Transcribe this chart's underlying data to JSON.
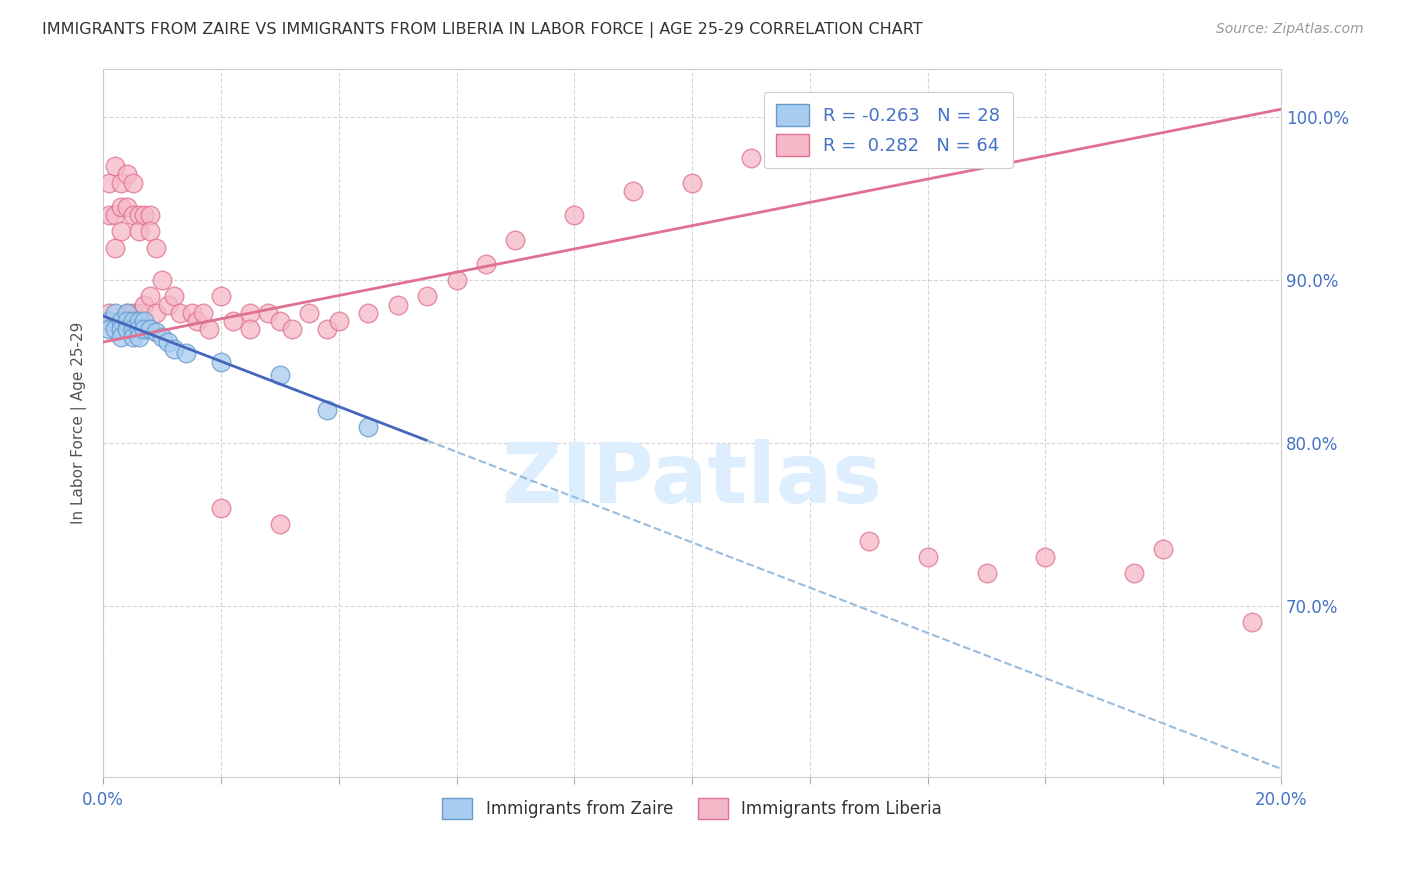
{
  "title": "IMMIGRANTS FROM ZAIRE VS IMMIGRANTS FROM LIBERIA IN LABOR FORCE | AGE 25-29 CORRELATION CHART",
  "source": "Source: ZipAtlas.com",
  "ylabel": "In Labor Force | Age 25-29",
  "xmin": 0.0,
  "xmax": 0.2,
  "ymin": 0.595,
  "ymax": 1.03,
  "legend_r_zaire": "-0.263",
  "legend_n_zaire": "28",
  "legend_r_liberia": "0.282",
  "legend_n_liberia": "64",
  "color_zaire_fill": "#A8CCF0",
  "color_zaire_edge": "#6699CC",
  "color_liberia_fill": "#F5B8C8",
  "color_liberia_edge": "#E07090",
  "color_zaire_line": "#4466BB",
  "color_liberia_line": "#E07090",
  "color_dashed": "#99BBDD",
  "color_title": "#333333",
  "color_source": "#999999",
  "color_axis_blue": "#4472C4",
  "background_color": "#FFFFFF",
  "ytick_positions": [
    1.0,
    0.9,
    0.8,
    0.7
  ],
  "ytick_labels": [
    "100.0%",
    "90.0%",
    "80.0%",
    "70.0%"
  ],
  "zaire_x": [
    0.001,
    0.001,
    0.002,
    0.002,
    0.003,
    0.003,
    0.003,
    0.004,
    0.004,
    0.004,
    0.005,
    0.005,
    0.005,
    0.006,
    0.006,
    0.006,
    0.007,
    0.007,
    0.008,
    0.009,
    0.01,
    0.011,
    0.012,
    0.014,
    0.02,
    0.03,
    0.038,
    0.045
  ],
  "zaire_y": [
    0.875,
    0.87,
    0.88,
    0.87,
    0.875,
    0.87,
    0.865,
    0.88,
    0.875,
    0.87,
    0.875,
    0.87,
    0.865,
    0.875,
    0.87,
    0.865,
    0.875,
    0.87,
    0.87,
    0.868,
    0.865,
    0.862,
    0.858,
    0.855,
    0.85,
    0.842,
    0.82,
    0.81
  ],
  "liberia_x": [
    0.001,
    0.001,
    0.001,
    0.002,
    0.002,
    0.002,
    0.003,
    0.003,
    0.003,
    0.003,
    0.004,
    0.004,
    0.004,
    0.005,
    0.005,
    0.005,
    0.006,
    0.006,
    0.006,
    0.007,
    0.007,
    0.008,
    0.008,
    0.008,
    0.009,
    0.009,
    0.01,
    0.011,
    0.012,
    0.013,
    0.015,
    0.016,
    0.017,
    0.018,
    0.02,
    0.022,
    0.025,
    0.025,
    0.028,
    0.03,
    0.032,
    0.035,
    0.038,
    0.04,
    0.045,
    0.05,
    0.055,
    0.06,
    0.065,
    0.07,
    0.08,
    0.09,
    0.1,
    0.11,
    0.12,
    0.13,
    0.14,
    0.15,
    0.16,
    0.175,
    0.18,
    0.195,
    0.02,
    0.03
  ],
  "liberia_y": [
    0.96,
    0.94,
    0.88,
    0.97,
    0.94,
    0.92,
    0.96,
    0.945,
    0.93,
    0.875,
    0.965,
    0.945,
    0.88,
    0.96,
    0.94,
    0.88,
    0.94,
    0.93,
    0.88,
    0.94,
    0.885,
    0.94,
    0.93,
    0.89,
    0.92,
    0.88,
    0.9,
    0.885,
    0.89,
    0.88,
    0.88,
    0.875,
    0.88,
    0.87,
    0.89,
    0.875,
    0.88,
    0.87,
    0.88,
    0.875,
    0.87,
    0.88,
    0.87,
    0.875,
    0.88,
    0.885,
    0.89,
    0.9,
    0.91,
    0.925,
    0.94,
    0.955,
    0.96,
    0.975,
    0.985,
    0.74,
    0.73,
    0.72,
    0.73,
    0.72,
    0.735,
    0.69,
    0.76,
    0.75
  ],
  "zaire_line_x0": 0.0,
  "zaire_line_x1": 0.2,
  "zaire_line_y0": 0.878,
  "zaire_line_y1": 0.6,
  "liberia_line_x0": 0.0,
  "liberia_line_x1": 0.2,
  "liberia_line_y0": 0.862,
  "liberia_line_y1": 1.005,
  "zaire_solid_xend": 0.055,
  "watermark_text": "ZIPatlas",
  "watermark_color": "#DDEEFF",
  "legend_fontsize": 13,
  "title_fontsize": 11.5,
  "dot_size": 180
}
